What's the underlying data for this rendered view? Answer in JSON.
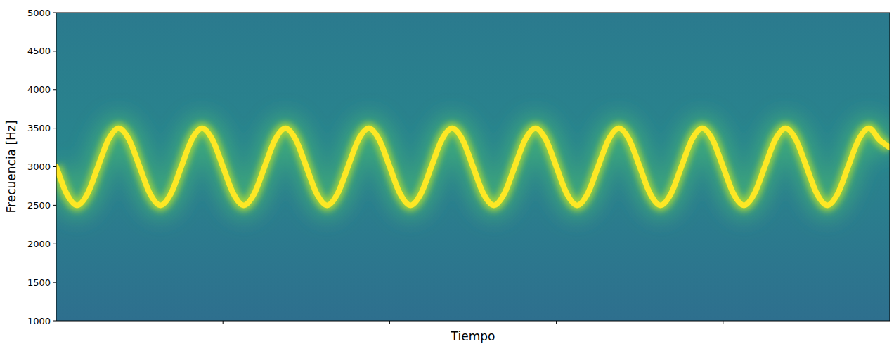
{
  "chart_data": {
    "type": "line",
    "x_label": "Tiempo",
    "y_label": "Frecuencia [Hz]",
    "x": [
      0,
      0.0125,
      0.025,
      0.0375,
      0.05,
      0.0625,
      0.075,
      0.0875,
      0.1,
      0.1125,
      0.125,
      0.1375,
      0.15,
      0.1625,
      0.175,
      0.1875,
      0.2,
      0.2125,
      0.225,
      0.2375,
      0.25,
      0.2625,
      0.275,
      0.2875,
      0.3,
      0.3125,
      0.325,
      0.3375,
      0.35,
      0.3625,
      0.375,
      0.3875,
      0.4,
      0.4125,
      0.425,
      0.4375,
      0.45,
      0.4625,
      0.475,
      0.4875,
      0.5,
      0.5125,
      0.525,
      0.5375,
      0.55,
      0.5625,
      0.575,
      0.5875,
      0.6,
      0.6125,
      0.625,
      0.6375,
      0.65,
      0.6625,
      0.675,
      0.6875,
      0.7,
      0.7125,
      0.725,
      0.7375,
      0.75,
      0.7625,
      0.775,
      0.7875,
      0.8,
      0.8125,
      0.825,
      0.8375,
      0.85,
      0.8625,
      0.875,
      0.8875,
      0.9,
      0.9125,
      0.925,
      0.9375,
      0.95,
      0.9625,
      0.975,
      0.9875,
      1
    ],
    "values": [
      3000,
      2650,
      2500,
      2650,
      3000,
      3350,
      3500,
      3350,
      3000,
      2650,
      2500,
      2650,
      3000,
      3350,
      3500,
      3350,
      3000,
      2650,
      2500,
      2650,
      3000,
      3350,
      3500,
      3350,
      3000,
      2650,
      2500,
      2650,
      3000,
      3350,
      3500,
      3350,
      3000,
      2650,
      2500,
      2650,
      3000,
      3350,
      3500,
      3350,
      3000,
      2650,
      2500,
      2650,
      3000,
      3350,
      3500,
      3350,
      3000,
      2650,
      2500,
      2650,
      3000,
      3350,
      3500,
      3350,
      3000,
      2650,
      2500,
      2650,
      3000,
      3350,
      3500,
      3350,
      3000,
      2650,
      2500,
      2650,
      3000,
      3350,
      3500,
      3350,
      3000,
      2650,
      2500,
      2650,
      3000,
      3350,
      3500,
      3350,
      3250
    ],
    "color": "#fde725",
    "xlim": [
      0,
      1
    ],
    "xticks": [
      0.2,
      0.4,
      0.6,
      0.8
    ],
    "ylim": [
      1000,
      5000
    ],
    "yticks": [
      1000,
      1500,
      2000,
      2500,
      3000,
      3500,
      4000,
      4500,
      5000
    ],
    "tick_labels": "y",
    "grid": false
  }
}
